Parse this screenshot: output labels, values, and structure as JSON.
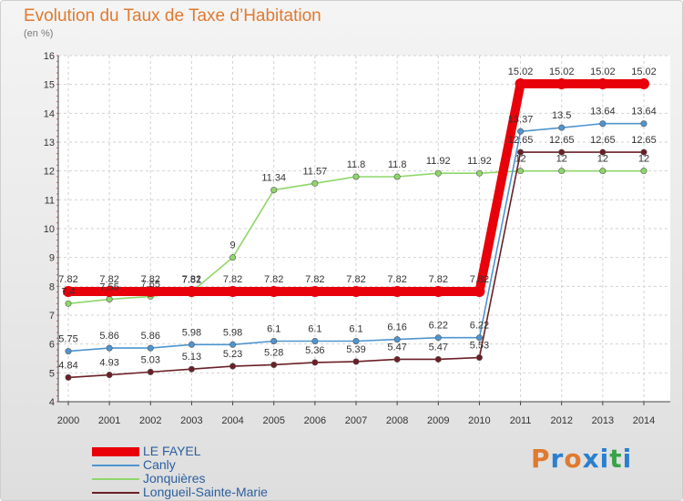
{
  "title": "Evolution du Taux de Taxe d’Habitation",
  "subtitle": "(en %)",
  "logo": {
    "text": "Proxiti",
    "colors": [
      "#e07a30",
      "#2b7fcf",
      "#e07a30",
      "#2b7fcf",
      "#2b7fcf",
      "#3aa34a",
      "#2b7fcf"
    ]
  },
  "chart_data": {
    "type": "line",
    "categories": [
      "2000",
      "2001",
      "2002",
      "2003",
      "2004",
      "2005",
      "2006",
      "2007",
      "2008",
      "2009",
      "2010",
      "2011",
      "2012",
      "2013",
      "2014"
    ],
    "ylim": [
      4,
      16
    ],
    "yticks": [
      4,
      5,
      6,
      7,
      8,
      9,
      10,
      11,
      12,
      13,
      14,
      15,
      16
    ],
    "grid": true,
    "legend_placement": "bottom-left",
    "series": [
      {
        "name": "LE FAYEL",
        "color": "#e8000b",
        "emphasis": true,
        "values": [
          7.82,
          7.82,
          7.82,
          7.82,
          7.82,
          7.82,
          7.82,
          7.82,
          7.82,
          7.82,
          7.82,
          15.02,
          15.02,
          15.02,
          15.02
        ],
        "labels": [
          "7.82",
          "7.82",
          "7.82",
          "7.82",
          "7.82",
          "7.82",
          "7.82",
          "7.82",
          "7.82",
          "7.82",
          "7.82",
          "15.02",
          "15.02",
          "15.02",
          "15.02"
        ]
      },
      {
        "name": "Canly",
        "color": "#4f95cf",
        "emphasis": false,
        "values": [
          5.75,
          5.86,
          5.86,
          5.98,
          5.98,
          6.1,
          6.1,
          6.1,
          6.16,
          6.22,
          6.22,
          13.37,
          13.5,
          13.64,
          13.64
        ],
        "labels": [
          "5.75",
          "5.86",
          "5.86",
          "5.98",
          "5.98",
          "6.1",
          "6.1",
          "6.1",
          "6.16",
          "6.22",
          "6.22",
          "13.37",
          "13.5",
          "13.64",
          "13.64"
        ]
      },
      {
        "name": "Jonquières",
        "color": "#8fd66a",
        "emphasis": false,
        "values": [
          7.4,
          7.55,
          7.65,
          7.81,
          9,
          11.34,
          11.57,
          11.8,
          11.8,
          11.92,
          11.92,
          12,
          12,
          12,
          12
        ],
        "labels": [
          "7.4",
          "7.55",
          "7.65",
          "7.81",
          "9",
          "11.34",
          "11.57",
          "11.8",
          "11.8",
          "11.92",
          "11.92",
          "12",
          "12",
          "12",
          "12"
        ]
      },
      {
        "name": "Longueil-Sainte-Marie",
        "color": "#6b1f25",
        "emphasis": false,
        "values": [
          4.84,
          4.93,
          5.03,
          5.13,
          5.23,
          5.28,
          5.36,
          5.39,
          5.47,
          5.47,
          5.53,
          12.65,
          12.65,
          12.65,
          12.65
        ],
        "labels": [
          "4.84",
          "4.93",
          "5.03",
          "5.13",
          "5.23",
          "5.28",
          "5.36",
          "5.39",
          "5.47",
          "5.47",
          "5.53",
          "12.65",
          "12.65",
          "12.65",
          "12.65"
        ]
      }
    ]
  }
}
